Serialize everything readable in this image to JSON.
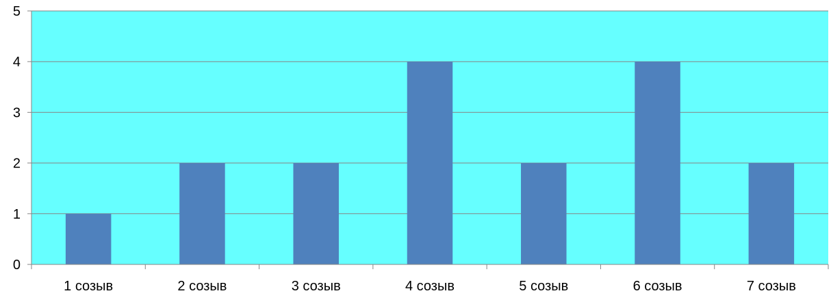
{
  "chart_data": {
    "type": "bar",
    "categories": [
      "1 созыв",
      "2 созыв",
      "3 созыв",
      "4 созыв",
      "5 созыв",
      "6 созыв",
      "7 созыв"
    ],
    "values": [
      1,
      2,
      2,
      4,
      2,
      4,
      2
    ],
    "ylim": [
      0,
      5
    ],
    "yticks": [
      "0",
      "1",
      "2",
      "3",
      "4",
      "5"
    ],
    "grid": true,
    "legend": "none",
    "title": "",
    "xlabel": "",
    "ylabel": ""
  },
  "colors": {
    "plot_background": "#66FFFF",
    "bar": "#4F81BD",
    "grid": "#868686",
    "axis": "#868686"
  }
}
